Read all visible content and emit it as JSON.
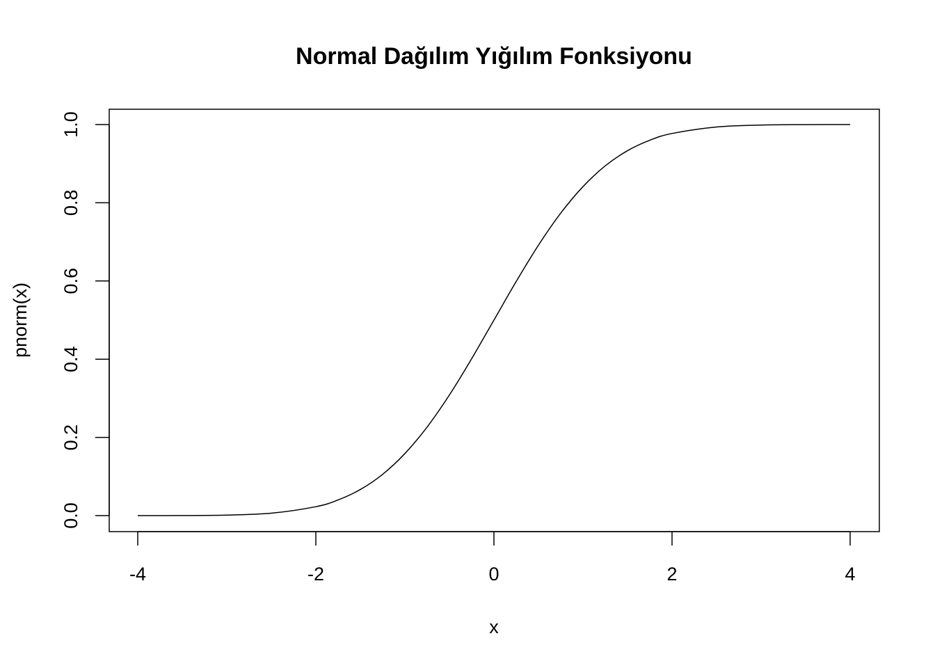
{
  "chart_data": {
    "type": "line",
    "title": "Normal Dağılım Yığılım Fonksiyonu",
    "xlabel": "x",
    "ylabel": "pnorm(x)",
    "xlim": [
      -4,
      4
    ],
    "ylim": [
      0,
      1
    ],
    "x_ticks": [
      "-4",
      "-2",
      "0",
      "2",
      "4"
    ],
    "y_ticks": [
      "0.0",
      "0.2",
      "0.4",
      "0.6",
      "0.8",
      "1.0"
    ],
    "grid": false,
    "line_color": "#000000",
    "series": [
      {
        "x": [
          -4.0,
          -3.5,
          -3.0,
          -2.5,
          -2.0,
          -1.75,
          -1.5,
          -1.25,
          -1.0,
          -0.75,
          -0.5,
          -0.25,
          0.0,
          0.25,
          0.5,
          0.75,
          1.0,
          1.25,
          1.5,
          1.75,
          2.0,
          2.5,
          3.0,
          3.5,
          4.0
        ],
        "values": [
          0.0,
          0.0002,
          0.0013,
          0.0062,
          0.0228,
          0.0401,
          0.0668,
          0.1056,
          0.1587,
          0.2266,
          0.3085,
          0.4013,
          0.5,
          0.5987,
          0.6915,
          0.7734,
          0.8413,
          0.8944,
          0.9332,
          0.9599,
          0.9772,
          0.9938,
          0.9987,
          0.9998,
          1.0
        ]
      }
    ]
  }
}
